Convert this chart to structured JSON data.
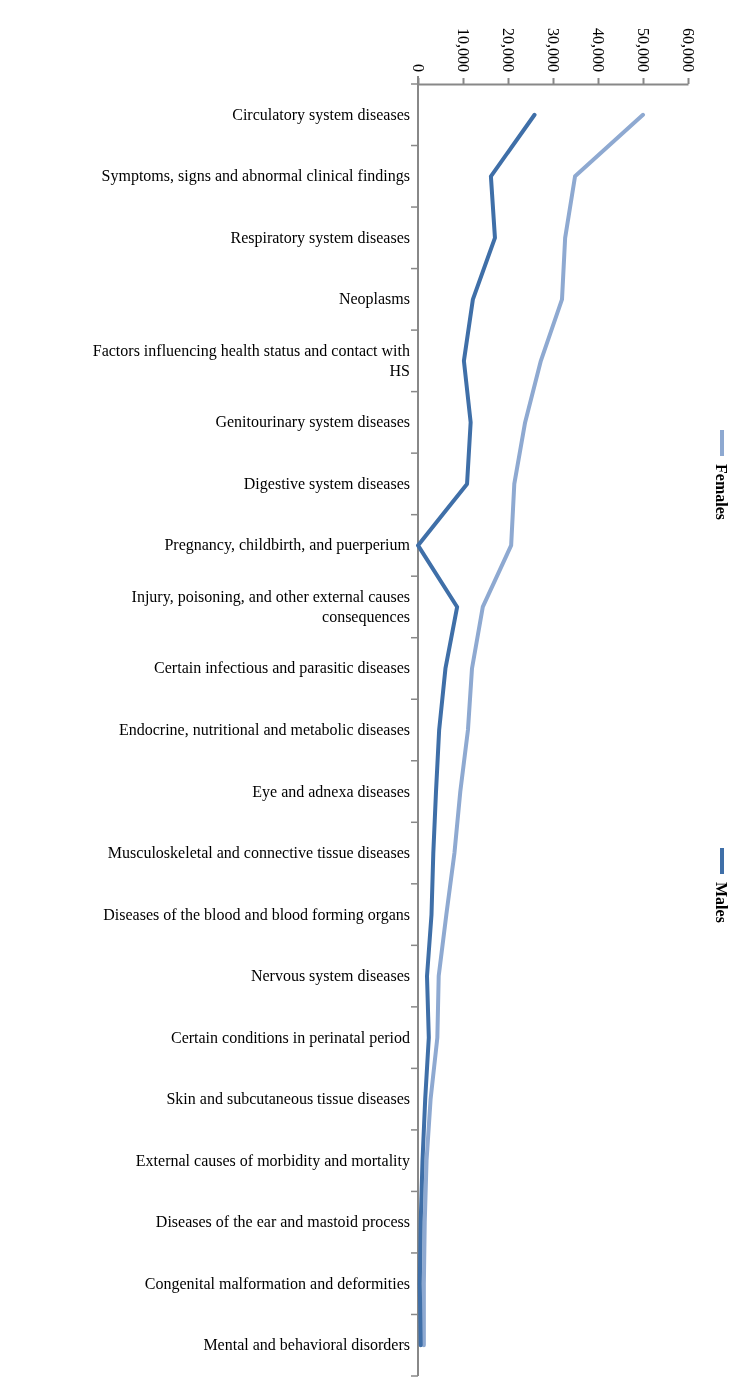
{
  "chart_data": {
    "type": "line",
    "orientation": "horizontal",
    "legend": "right",
    "marker": "none",
    "line_style": "solid",
    "categories": [
      "Circulatory system diseases",
      "Symptoms, signs and abnormal clinical findings",
      "Respiratory system diseases",
      "Neoplasms",
      "Factors influencing health status and contact with HS",
      "Genitourinary system diseases",
      "Digestive system diseases",
      "Pregnancy, childbirth, and puerperium",
      "Injury, poisoning, and other external causes consequences",
      "Certain infectious and parasitic diseases",
      "Endocrine, nutritional and metabolic diseases",
      "Eye and adnexa diseases",
      "Musculoskeletal and connective tissue diseases",
      "Diseases of the blood and blood forming organs",
      "Nervous system diseases",
      "Certain conditions in perinatal period",
      "Skin and subcutaneous tissue diseases",
      "External causes of morbidity and mortality",
      "Diseases of the ear and mastoid process",
      "Congenital malformation and deformities",
      "Mental and behavioral disorders"
    ],
    "xlim": [
      0,
      60000
    ],
    "xticks": [
      0,
      {
        "value": 10000,
        "label": "10,000"
      },
      {
        "value": 20000,
        "label": "20,000"
      },
      {
        "value": 30000,
        "label": "30,000"
      },
      {
        "value": 40000,
        "label": "40,000"
      },
      {
        "value": 50000,
        "label": "50,000"
      },
      {
        "value": 60000,
        "label": "60,000"
      }
    ],
    "series": [
      {
        "name": "Females",
        "color": "#8ea9d1",
        "values": [
          50000,
          34900,
          32700,
          32000,
          27300,
          23800,
          21400,
          20700,
          14400,
          12000,
          11100,
          9400,
          8100,
          6300,
          4600,
          4300,
          2800,
          1900,
          1500,
          1300,
          1300
        ]
      },
      {
        "name": "Males",
        "color": "#3f6fa8",
        "values": [
          25900,
          16200,
          17100,
          12200,
          10200,
          11700,
          10900,
          0,
          8700,
          6100,
          4700,
          4000,
          3400,
          3000,
          2000,
          2400,
          1600,
          1000,
          600,
          400,
          600
        ]
      }
    ]
  }
}
